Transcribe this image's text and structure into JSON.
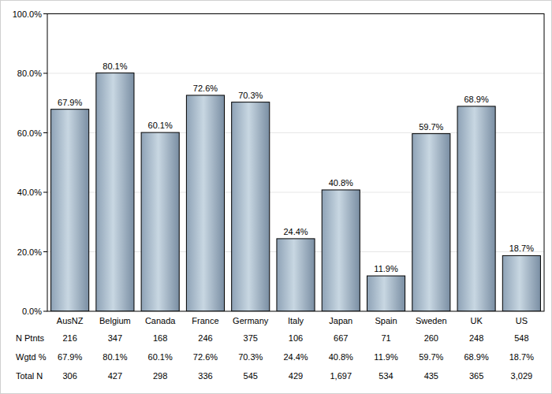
{
  "chart_data": {
    "type": "bar",
    "categories": [
      "AusNZ",
      "Belgium",
      "Canada",
      "France",
      "Germany",
      "Italy",
      "Japan",
      "Spain",
      "Sweden",
      "UK",
      "US"
    ],
    "values": [
      67.9,
      80.1,
      60.1,
      72.6,
      70.3,
      24.4,
      40.8,
      11.9,
      59.7,
      68.9,
      18.7
    ],
    "value_labels": [
      "67.9%",
      "80.1%",
      "60.1%",
      "72.6%",
      "70.3%",
      "24.4%",
      "40.8%",
      "11.9%",
      "59.7%",
      "68.9%",
      "18.7%"
    ],
    "color": "#c8d7e2",
    "ylim": [
      0,
      100
    ],
    "yticks": [
      {
        "value": 0,
        "label": "0.0%"
      },
      {
        "value": 20,
        "label": "20.0%"
      },
      {
        "value": 40,
        "label": "40.0%"
      },
      {
        "value": 60,
        "label": "60.0%"
      },
      {
        "value": 80,
        "label": "80.0%"
      },
      {
        "value": 100,
        "label": "100.0%"
      }
    ],
    "grid": true,
    "data_labels": true,
    "table": {
      "rows": [
        {
          "label": "N Ptnts",
          "values": [
            "216",
            "347",
            "168",
            "246",
            "375",
            "106",
            "667",
            "71",
            "260",
            "248",
            "548"
          ]
        },
        {
          "label": "Wgtd %",
          "values": [
            "67.9%",
            "80.1%",
            "60.1%",
            "72.6%",
            "70.3%",
            "24.4%",
            "40.8%",
            "11.9%",
            "59.7%",
            "68.9%",
            "18.7%"
          ]
        },
        {
          "label": "Total N",
          "values": [
            "306",
            "427",
            "298",
            "336",
            "545",
            "429",
            "1,697",
            "534",
            "435",
            "365",
            "3,029"
          ]
        }
      ]
    }
  }
}
